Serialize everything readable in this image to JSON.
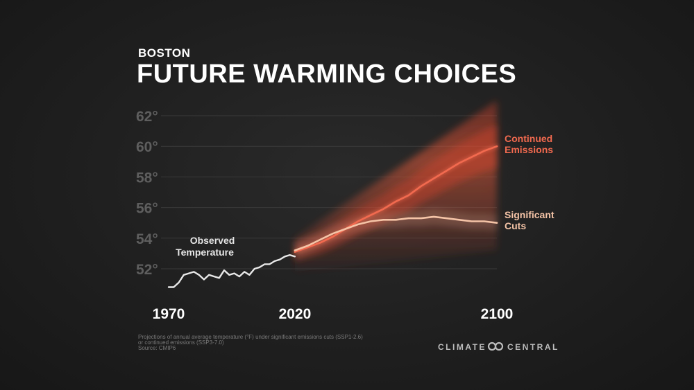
{
  "header": {
    "subtitle": "BOSTON",
    "title": "FUTURE WARMING CHOICES"
  },
  "footnote": {
    "line1": "Projections of annual average temperature (°F) under significant emissions cuts (SSP1-2.6)",
    "line2": "or continued emissions (SSP3-7.0)",
    "line3": "Source: CMIP6"
  },
  "logo": {
    "left": "CLIMATE",
    "right": "CENTRAL"
  },
  "chart_data": {
    "type": "line",
    "title": "FUTURE WARMING CHOICES",
    "subtitle": "BOSTON",
    "xlabel": "",
    "ylabel": "",
    "xlim": [
      1970,
      2100
    ],
    "ylim": [
      50.8,
      63
    ],
    "x_ticks": [
      1970,
      2020,
      2100
    ],
    "x_tick_labels": [
      "1970",
      "2020",
      "2100"
    ],
    "y_ticks": [
      52,
      54,
      56,
      58,
      60,
      62
    ],
    "y_tick_labels": [
      "52°",
      "54°",
      "56°",
      "58°",
      "60°",
      "62°"
    ],
    "grid": true,
    "colors": {
      "observed": "#e8e8e8",
      "continued": "#f26a4f",
      "cuts": "#f5c4a7",
      "band": "#e8452b"
    },
    "series": [
      {
        "name": "Observed Temperature",
        "x": [
          1970,
          1972,
          1974,
          1976,
          1978,
          1980,
          1982,
          1984,
          1986,
          1988,
          1990,
          1992,
          1994,
          1996,
          1998,
          2000,
          2002,
          2004,
          2006,
          2008,
          2010,
          2012,
          2014,
          2016,
          2018,
          2020
        ],
        "values": [
          50.8,
          50.8,
          51.1,
          51.6,
          51.7,
          51.8,
          51.6,
          51.3,
          51.6,
          51.5,
          51.4,
          51.9,
          51.6,
          51.7,
          51.5,
          51.8,
          51.6,
          52.0,
          52.1,
          52.3,
          52.3,
          52.5,
          52.6,
          52.8,
          52.9,
          52.8
        ]
      },
      {
        "name": "Continued Emissions",
        "x": [
          2020,
          2025,
          2030,
          2035,
          2040,
          2045,
          2050,
          2055,
          2060,
          2065,
          2070,
          2075,
          2080,
          2085,
          2090,
          2095,
          2100
        ],
        "values": [
          53.1,
          53.4,
          53.7,
          54.1,
          54.6,
          55.1,
          55.5,
          55.9,
          56.4,
          56.8,
          57.4,
          57.9,
          58.4,
          58.9,
          59.3,
          59.7,
          60.0
        ]
      },
      {
        "name": "Significant Cuts",
        "x": [
          2020,
          2025,
          2030,
          2035,
          2040,
          2045,
          2050,
          2055,
          2060,
          2065,
          2070,
          2075,
          2080,
          2085,
          2090,
          2095,
          2100
        ],
        "values": [
          53.2,
          53.5,
          53.9,
          54.3,
          54.6,
          54.9,
          55.1,
          55.2,
          55.2,
          55.3,
          55.3,
          55.4,
          55.3,
          55.2,
          55.1,
          55.1,
          55.0
        ]
      }
    ],
    "band": {
      "x": [
        2020,
        2100
      ],
      "upper": [
        54.0,
        63.0
      ],
      "lower": [
        51.8,
        53.2
      ]
    }
  }
}
